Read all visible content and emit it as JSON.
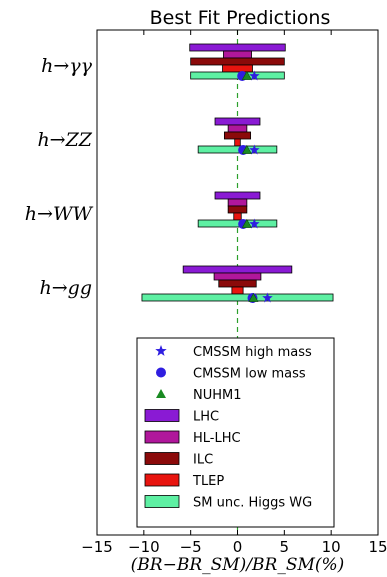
{
  "chart_data": {
    "type": "horizontal-bar-intervals",
    "title": "Best Fit Predictions",
    "xlabel": "(BR−BR_SM)/BR_SM(%)",
    "xlim": [
      -15,
      15
    ],
    "xticks": [
      -15,
      -10,
      -5,
      0,
      5,
      10,
      15
    ],
    "xtick_labels": [
      "−15",
      "−10",
      "−5",
      "0",
      "5",
      "10",
      "15"
    ],
    "processes": [
      "h→γγ",
      "h→ZZ",
      "h→WW",
      "h→gg"
    ],
    "colors": {
      "LHC": "#8a1ad4",
      "HL-LHC": "#b0179b",
      "ILC": "#8b0a0a",
      "TLEP": "#e8140f",
      "SM unc. Higgs WG": "#5ef0a3",
      "markers": "#2f1ee0",
      "triangle": "#1a8a22",
      "zero_line": "#2ca02c"
    },
    "series": [
      {
        "name": "LHC",
        "intervals": [
          [
            -5.1,
            5.1
          ],
          [
            -2.4,
            2.4
          ],
          [
            -2.4,
            2.4
          ],
          [
            -5.8,
            5.8
          ]
        ]
      },
      {
        "name": "HL-LHC",
        "intervals": [
          [
            -1.5,
            1.5
          ],
          [
            -1.0,
            1.0
          ],
          [
            -1.0,
            1.0
          ],
          [
            -2.5,
            2.5
          ]
        ]
      },
      {
        "name": "ILC",
        "intervals": [
          [
            -5.0,
            5.0
          ],
          [
            -1.4,
            1.4
          ],
          [
            -1.0,
            1.0
          ],
          [
            -2.0,
            2.0
          ]
        ]
      },
      {
        "name": "TLEP",
        "intervals": [
          [
            -1.6,
            1.6
          ],
          [
            -0.3,
            0.3
          ],
          [
            -0.4,
            0.4
          ],
          [
            -0.6,
            0.6
          ]
        ]
      },
      {
        "name": "SM unc. Higgs WG",
        "intervals": [
          [
            -5.0,
            5.0
          ],
          [
            -4.2,
            4.2
          ],
          [
            -4.2,
            4.2
          ],
          [
            -10.2,
            10.2
          ]
        ]
      }
    ],
    "points": [
      {
        "name": "CMSSM high mass",
        "marker": "star",
        "x": [
          1.8,
          1.8,
          1.8,
          3.2
        ]
      },
      {
        "name": "CMSSM low mass",
        "marker": "circle",
        "x": [
          0.5,
          0.6,
          0.6,
          1.6
        ]
      },
      {
        "name": "NUHM1",
        "marker": "triangle",
        "x": [
          1.0,
          1.0,
          1.0,
          1.7
        ]
      }
    ],
    "legend": {
      "placement": "lower-center",
      "entries": [
        "CMSSM high mass",
        "CMSSM low mass",
        "NUHM1",
        "LHC",
        "HL-LHC",
        "ILC",
        "TLEP",
        "SM unc. Higgs WG"
      ]
    },
    "reference_line": 0
  }
}
